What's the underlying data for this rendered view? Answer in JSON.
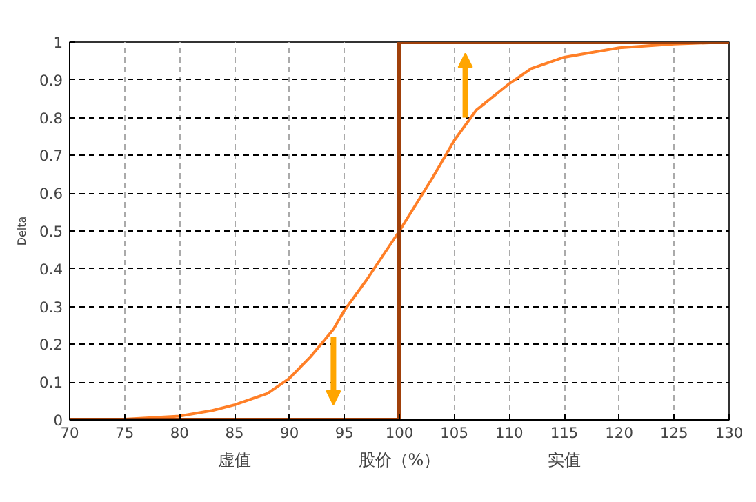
{
  "chart_data": {
    "type": "line",
    "xlabel": "股价（%）",
    "ylabel": "Delta",
    "xlim": [
      70,
      130
    ],
    "ylim": [
      0,
      1
    ],
    "xticks": [
      70,
      75,
      80,
      85,
      90,
      95,
      100,
      105,
      110,
      115,
      120,
      125,
      130
    ],
    "yticks": [
      0,
      0.1,
      0.2,
      0.3,
      0.4,
      0.5,
      0.6,
      0.7,
      0.8,
      0.9,
      1
    ],
    "grid": true,
    "line_style": "solid",
    "series": [
      {
        "color": "#ff7f27",
        "x": [
          70,
          75,
          80,
          83,
          85,
          88,
          90,
          92,
          94,
          95,
          97,
          100,
          103,
          105,
          107,
          110,
          112,
          115,
          118,
          120,
          125,
          130
        ],
        "values": [
          0,
          0.002,
          0.01,
          0.025,
          0.04,
          0.07,
          0.11,
          0.17,
          0.24,
          0.29,
          0.37,
          0.5,
          0.64,
          0.74,
          0.82,
          0.89,
          0.93,
          0.96,
          0.975,
          0.985,
          0.995,
          1.0
        ]
      },
      {
        "color": "#a0400a",
        "x": [
          70,
          100,
          100,
          130
        ],
        "values": [
          0,
          0,
          1,
          1
        ]
      }
    ],
    "annotations": [
      "虚值",
      "实值"
    ]
  }
}
